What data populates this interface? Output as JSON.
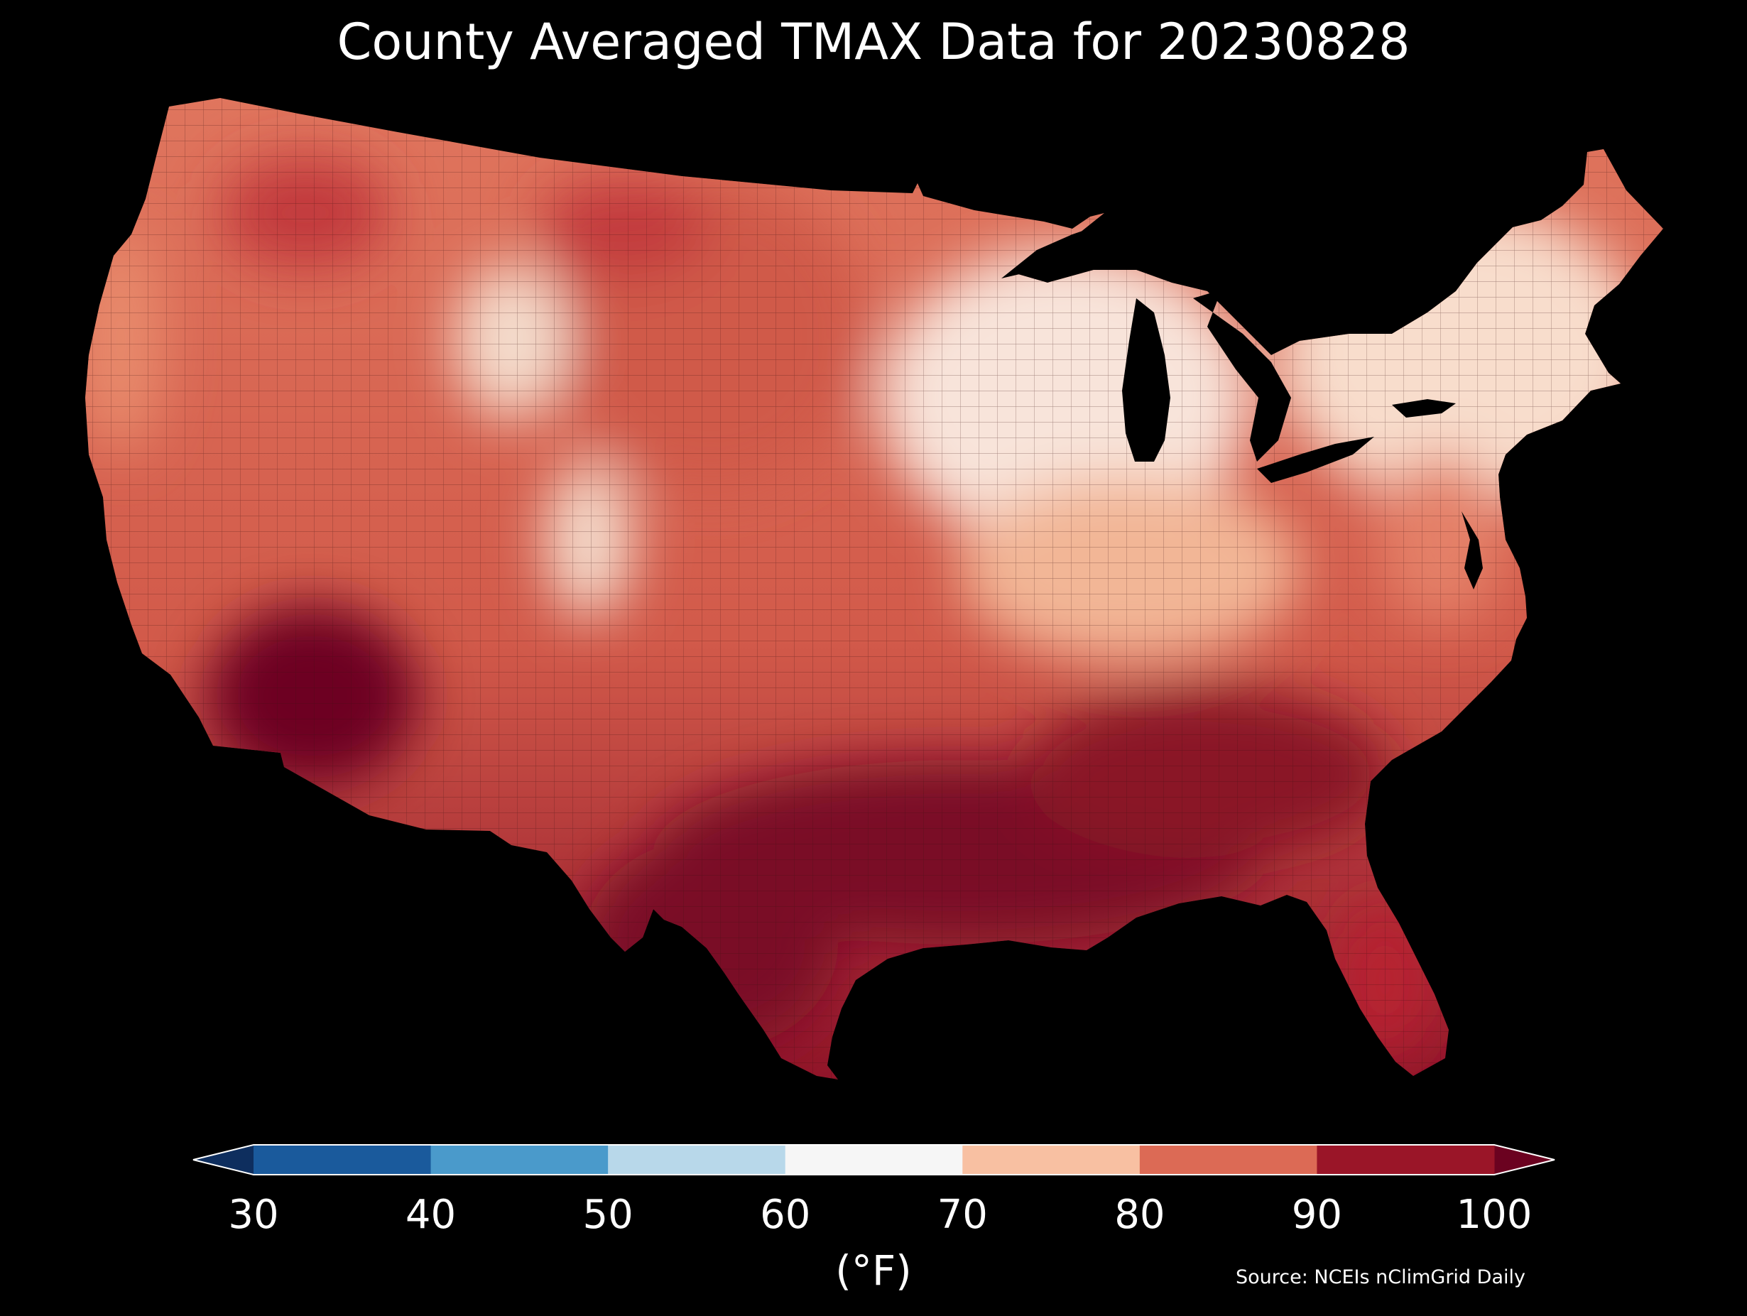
{
  "title": "County Averaged TMAX Data for 20230828",
  "source": "Source: NCEIs nClimGrid Daily",
  "colorbar": {
    "unit_label": "(°F)",
    "ticks": [
      "30",
      "40",
      "50",
      "60",
      "70",
      "80",
      "90",
      "100"
    ],
    "bins": [
      {
        "from": 30,
        "to": 40,
        "color": "#1a5a9c"
      },
      {
        "from": 40,
        "to": 50,
        "color": "#4a9acb"
      },
      {
        "from": 50,
        "to": 60,
        "color": "#b8d8ea"
      },
      {
        "from": 60,
        "to": 70,
        "color": "#f6f6f6"
      },
      {
        "from": 70,
        "to": 80,
        "color": "#f8c0a2"
      },
      {
        "from": 80,
        "to": 90,
        "color": "#dc6a55"
      },
      {
        "from": 90,
        "to": 100,
        "color": "#9a1528"
      }
    ],
    "under_color": "#0e2e5e",
    "over_color": "#6b0220"
  },
  "map_regions": {
    "desert_southwest": {
      "color": "#6d0422"
    },
    "gulf_south": {
      "color": "#7a0a28"
    },
    "southeast": {
      "color": "#8a1228"
    },
    "great_plains": {
      "color": "#d05a4a"
    },
    "northern_rockies": {
      "color": "#c23a3e"
    },
    "california_coast": {
      "color": "#e88a6c"
    },
    "central_rockies": {
      "color": "#f4dccc"
    },
    "upper_midwest": {
      "color": "#f8e4da"
    },
    "northeast": {
      "color": "#f8ddcc"
    },
    "ohio_valley": {
      "color": "#f2b696"
    },
    "mid_atlantic": {
      "color": "#e48068"
    },
    "florida": {
      "color": "#b82230"
    }
  }
}
